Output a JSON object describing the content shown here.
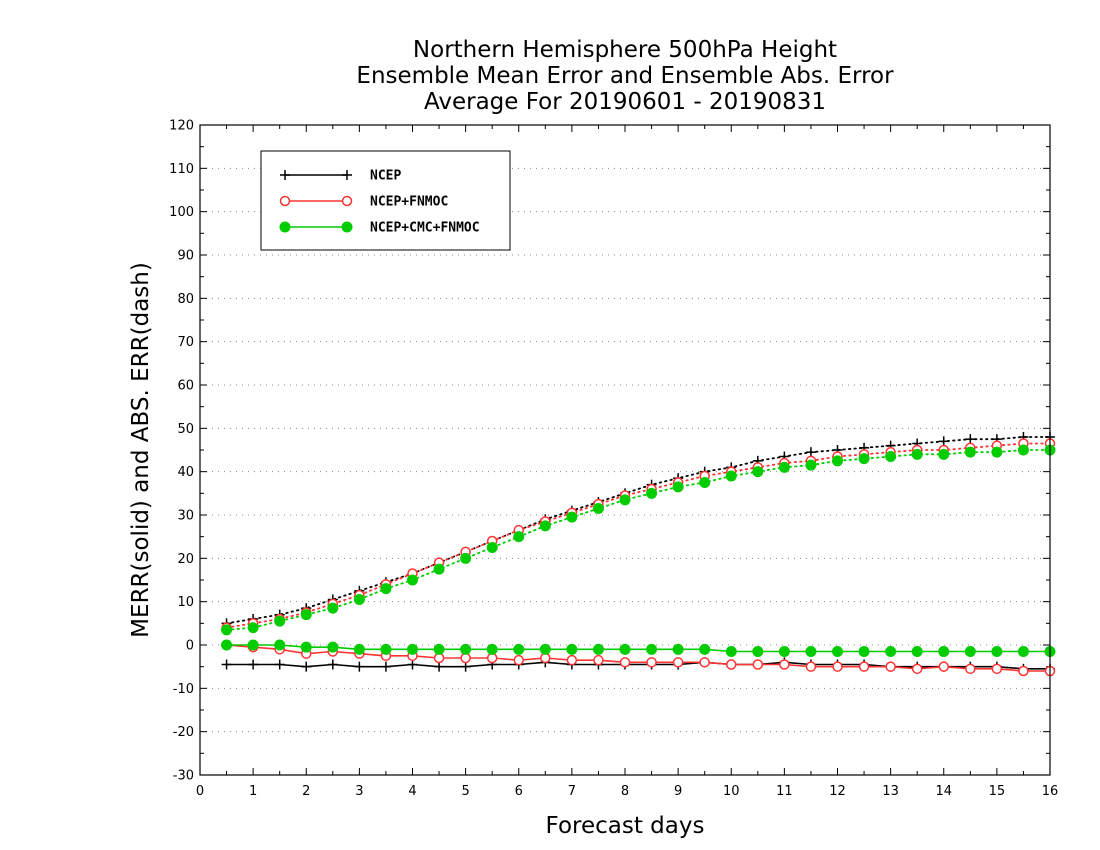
{
  "chart_data": {
    "type": "line",
    "title_lines": [
      "Northern Hemisphere 500hPa Height",
      "Ensemble Mean Error and Ensemble Abs. Error",
      "Average For 20190601 - 20190831"
    ],
    "xlabel": "Forecast days",
    "ylabel": "MERR(solid) and ABS. ERR(dash)",
    "xlim": [
      0,
      16
    ],
    "ylim": [
      -30,
      120
    ],
    "xticks": [
      0,
      1,
      2,
      3,
      4,
      5,
      6,
      7,
      8,
      9,
      10,
      11,
      12,
      13,
      14,
      15,
      16
    ],
    "yticks": [
      -30,
      -20,
      -10,
      0,
      10,
      20,
      30,
      40,
      50,
      60,
      70,
      80,
      90,
      100,
      110,
      120
    ],
    "grid": "horizontal-dotted",
    "legend_position": "top-left",
    "x": [
      0.5,
      1,
      1.5,
      2,
      2.5,
      3,
      3.5,
      4,
      4.5,
      5,
      5.5,
      6,
      6.5,
      7,
      7.5,
      8,
      8.5,
      9,
      9.5,
      10,
      10.5,
      11,
      11.5,
      12,
      12.5,
      13,
      13.5,
      14,
      14.5,
      15,
      15.5,
      16
    ],
    "series": [
      {
        "name": "NCEP",
        "color": "#000000",
        "marker": "plus",
        "abs_err": [
          5,
          6,
          7,
          8.5,
          10.5,
          12.5,
          14.5,
          16.5,
          19,
          21.5,
          24,
          26.5,
          29,
          31,
          33,
          35,
          37,
          38.5,
          40,
          41,
          42.5,
          43.5,
          44.5,
          45,
          45.5,
          46,
          46.5,
          47,
          47.5,
          47.5,
          48,
          48
        ],
        "mean_err": [
          -4.5,
          -4.5,
          -4.5,
          -5,
          -4.5,
          -5,
          -5,
          -4.5,
          -5,
          -5,
          -4.5,
          -4.5,
          -4,
          -4.5,
          -4.5,
          -4.5,
          -4.5,
          -4.5,
          -4,
          -4.5,
          -4.5,
          -4,
          -4.5,
          -4.5,
          -4.5,
          -5,
          -5,
          -5,
          -5,
          -5,
          -5.5,
          -5.5
        ]
      },
      {
        "name": "NCEP+FNMOC",
        "color": "#ff3333",
        "marker": "open-circle",
        "abs_err": [
          4,
          5,
          6,
          7.5,
          9.5,
          11.5,
          14,
          16.5,
          19,
          21.5,
          24,
          26.5,
          28.5,
          30.5,
          32.5,
          34.5,
          36,
          37.5,
          39,
          40,
          41,
          42,
          42.5,
          43.5,
          44,
          44.5,
          45,
          45,
          45.5,
          46,
          46.5,
          46.5
        ],
        "mean_err": [
          0,
          -0.5,
          -1,
          -2,
          -1.5,
          -2,
          -2.5,
          -2.5,
          -3,
          -3,
          -3,
          -3.5,
          -3,
          -3.5,
          -3.5,
          -4,
          -4,
          -4,
          -4,
          -4.5,
          -4.5,
          -4.5,
          -5,
          -5,
          -5,
          -5,
          -5.5,
          -5,
          -5.5,
          -5.5,
          -6,
          -6
        ]
      },
      {
        "name": "NCEP+CMC+FNMOC",
        "color": "#00cc00",
        "marker": "filled-circle",
        "abs_err": [
          3.5,
          4,
          5.5,
          7,
          8.5,
          10.5,
          13,
          15,
          17.5,
          20,
          22.5,
          25,
          27.5,
          29.5,
          31.5,
          33.5,
          35,
          36.5,
          37.5,
          39,
          40,
          41,
          41.5,
          42.5,
          43,
          43.5,
          44,
          44,
          44.5,
          44.5,
          45,
          45
        ],
        "mean_err": [
          0,
          0,
          0,
          -0.5,
          -0.5,
          -1,
          -1,
          -1,
          -1,
          -1,
          -1,
          -1,
          -1,
          -1,
          -1,
          -1,
          -1,
          -1,
          -1,
          -1.5,
          -1.5,
          -1.5,
          -1.5,
          -1.5,
          -1.5,
          -1.5,
          -1.5,
          -1.5,
          -1.5,
          -1.5,
          -1.5,
          -1.5
        ]
      }
    ]
  }
}
